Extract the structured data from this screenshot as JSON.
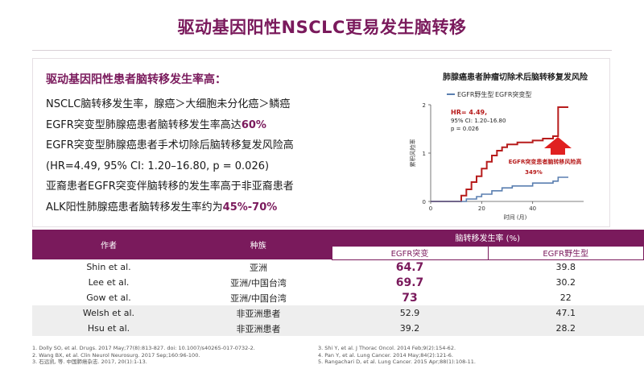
{
  "title": "驱动基因阳性NSCLC更易发生脑转移",
  "subheading": "驱动基因阳性患者脑转移发生率高：",
  "bullets": [
    {
      "pre": "NSCLC脑转移发生率，腺癌＞大细胞未分化癌＞鳞癌",
      "hl": "",
      "post": ""
    },
    {
      "pre": "EGFR突变型肺腺癌患者脑转移发生率高达",
      "hl": "60%",
      "post": ""
    },
    {
      "pre": "EGFR突变型肺腺癌患者手术切除后脑转移复发风险高",
      "hl": "",
      "post": ""
    },
    {
      "pre": "(HR=4.49, 95% CI: 1.20–16.80, p = 0.026)",
      "hl": "",
      "post": ""
    },
    {
      "pre": "亚裔患者EGFR突变伴脑转移的发生率高于非亚裔患者",
      "hl": "",
      "post": ""
    },
    {
      "pre": "ALK阳性肺腺癌患者脑转移发生率约为",
      "hl": "45%-70%",
      "post": ""
    }
  ],
  "chart": {
    "title": "肺腺癌患者肿瘤切除术后脑转移复发风险",
    "legend": [
      "EGFR野生型",
      "EGFR突变型"
    ],
    "ylabel": "累积风险率",
    "xlabel": "时间 (月)",
    "stats": [
      "HR= 4.49,",
      "95% CI: 1.20–16.80",
      "p = 0.026"
    ],
    "annotation": "EGFR突变患者脑转移风险高",
    "annotation_pct": "349%",
    "yticks": [
      "0",
      "1",
      "2"
    ],
    "xticks": [
      "0",
      "20",
      "40"
    ],
    "colors": {
      "mutant": "#b71c1c",
      "wild": "#5a7fb0",
      "arrow": "#e02020"
    }
  },
  "chart_data": {
    "type": "line",
    "title": "肺腺癌患者肿瘤切除术后脑转移复发风险",
    "xlabel": "时间 (月)",
    "ylabel": "累积风险率",
    "xlim": [
      0,
      60
    ],
    "ylim": [
      0,
      2
    ],
    "series": [
      {
        "name": "EGFR突变型",
        "x": [
          0,
          10,
          12,
          14,
          16,
          18,
          20,
          22,
          24,
          26,
          28,
          30,
          34,
          40,
          44,
          48,
          50,
          54
        ],
        "y": [
          0,
          0,
          0.12,
          0.25,
          0.4,
          0.52,
          0.68,
          0.82,
          0.95,
          1.05,
          1.12,
          1.18,
          1.22,
          1.26,
          1.3,
          1.35,
          1.95,
          1.95
        ]
      },
      {
        "name": "EGFR野生型",
        "x": [
          0,
          12,
          14,
          18,
          20,
          24,
          28,
          32,
          40,
          48,
          50,
          54
        ],
        "y": [
          0,
          0,
          0.05,
          0.1,
          0.15,
          0.22,
          0.28,
          0.32,
          0.38,
          0.42,
          0.5,
          0.5
        ]
      }
    ]
  },
  "table": {
    "headers": {
      "author": "作者",
      "race": "种族",
      "rate": "脑转移发生率 (%)",
      "mut": "EGFR突变",
      "wild": "EGFR野生型"
    },
    "rows": [
      {
        "author": "Shin et al.",
        "race": "亚洲",
        "mut": "64.7",
        "wild": "39.8"
      },
      {
        "author": "Lee et al.",
        "race": "亚洲/中国台湾",
        "mut": "69.7",
        "wild": "30.2"
      },
      {
        "author": "Gow et al.",
        "race": "亚洲/中国台湾",
        "mut": "73",
        "wild": "22"
      },
      {
        "author": "Welsh et al.",
        "race": "非亚洲患者",
        "mut": "52.9",
        "wild": "47.1"
      },
      {
        "author": "Hsu et al.",
        "race": "非亚洲患者",
        "mut": "39.2",
        "wild": "28.2"
      }
    ]
  },
  "references": [
    "1. Dolly SO, et al. Drugs. 2017 May;77(8):813-827. doi: 10.1007/s40265-017-0732-2.",
    "2. Wang BX, et al. Clin Neurol Neurosurg. 2017 Sep;160:96-100.",
    "3. 石远凯, 等. 中国肺癌杂志. 2017, 20(1):1-13.",
    "3. Shi Y, et al. J Thorac Oncol. 2014 Feb;9(2):154-62.",
    "4. Pan Y, et al. Lung Cancer. 2014 May;84(2):121-6.",
    "5. Rangachari D, et al. Lung Cancer. 2015 Apr;88(1):108-11."
  ]
}
